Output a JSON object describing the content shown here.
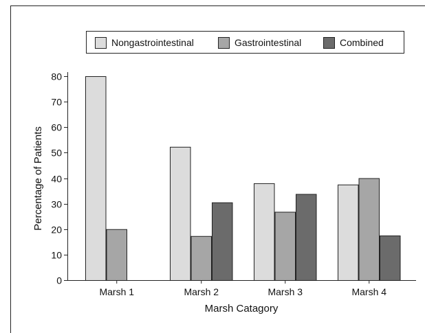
{
  "chart_data": {
    "type": "bar",
    "title": "",
    "xlabel": "Marsh Catagory",
    "ylabel": "Percentage of Patients",
    "ylim": [
      0,
      80
    ],
    "yticks": [
      0,
      10,
      20,
      30,
      40,
      50,
      60,
      70,
      80
    ],
    "categories": [
      "Marsh 1",
      "Marsh 2",
      "Marsh 3",
      "Marsh 4"
    ],
    "series": [
      {
        "name": "Nongastrointestinal",
        "color": "#dcdcdc",
        "values": [
          80,
          52.3,
          38,
          37.5
        ]
      },
      {
        "name": "Gastrointestinal",
        "color": "#a6a6a6",
        "values": [
          20,
          17.3,
          26.8,
          40
        ]
      },
      {
        "name": "Combined",
        "color": "#6b6b6b",
        "values": [
          0,
          30.5,
          33.8,
          17.5
        ]
      }
    ],
    "legend_position": "top",
    "grid": false
  }
}
